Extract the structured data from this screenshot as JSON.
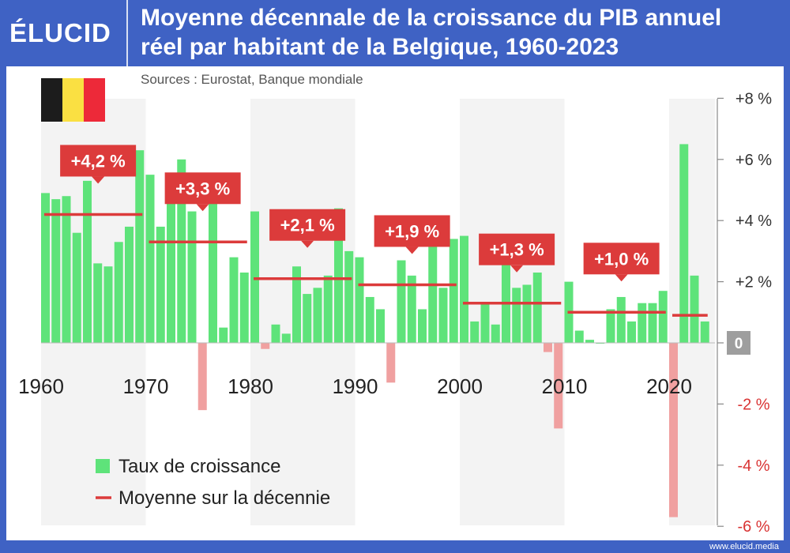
{
  "header": {
    "logo": "ÉLUCID",
    "title_line1": "Moyenne décennale de la croissance du PIB annuel",
    "title_line2": "réel par habitant de la Belgique, 1960-2023"
  },
  "source": "Sources : Eurostat, Banque mondiale",
  "footer": "www.elucid.media",
  "colors": {
    "positive_bar": "#5ee37a",
    "negative_bar": "#f0a0a0",
    "average_line": "#dc3b3b",
    "label_box": "#dc3b3b",
    "negative_tick": "#d93333",
    "zero_box": "#9e9e9e",
    "band": "#f3f3f3",
    "brand": "#3f62c4"
  },
  "chart_data": {
    "type": "bar",
    "title": "Moyenne décennale de la croissance du PIB annuel réel par habitant de la Belgique, 1960-2023",
    "x": [
      1960,
      1961,
      1962,
      1963,
      1964,
      1965,
      1966,
      1967,
      1968,
      1969,
      1970,
      1971,
      1972,
      1973,
      1974,
      1975,
      1976,
      1977,
      1978,
      1979,
      1980,
      1981,
      1982,
      1983,
      1984,
      1985,
      1986,
      1987,
      1988,
      1989,
      1990,
      1991,
      1992,
      1993,
      1994,
      1995,
      1996,
      1997,
      1998,
      1999,
      2000,
      2001,
      2002,
      2003,
      2004,
      2005,
      2006,
      2007,
      2008,
      2009,
      2010,
      2011,
      2012,
      2013,
      2014,
      2015,
      2016,
      2017,
      2018,
      2019,
      2020,
      2021,
      2022,
      2023
    ],
    "values": [
      4.9,
      4.7,
      4.8,
      3.6,
      5.3,
      2.6,
      2.5,
      3.3,
      3.8,
      6.3,
      5.5,
      3.8,
      4.8,
      6.0,
      4.3,
      -2.2,
      5.4,
      0.5,
      2.8,
      2.3,
      4.3,
      -0.2,
      0.6,
      0.3,
      2.5,
      1.6,
      1.8,
      2.2,
      4.4,
      3.0,
      2.8,
      1.5,
      1.1,
      -1.3,
      2.7,
      2.2,
      1.1,
      3.3,
      1.8,
      3.4,
      3.5,
      0.7,
      1.3,
      0.6,
      2.7,
      1.8,
      1.9,
      2.3,
      -0.3,
      -2.8,
      2.0,
      0.4,
      0.1,
      0.0,
      1.1,
      1.5,
      0.7,
      1.3,
      1.3,
      1.7,
      -5.7,
      6.5,
      2.2,
      0.7
    ],
    "decade_averages": [
      {
        "start": 1960,
        "end": 1969,
        "value": 4.2,
        "label": "+4,2 %"
      },
      {
        "start": 1970,
        "end": 1979,
        "value": 3.3,
        "label": "+3,3 %"
      },
      {
        "start": 1980,
        "end": 1989,
        "value": 2.1,
        "label": "+2,1 %"
      },
      {
        "start": 1990,
        "end": 1999,
        "value": 1.9,
        "label": "+1,9 %"
      },
      {
        "start": 2000,
        "end": 2009,
        "value": 1.3,
        "label": "+1,3 %"
      },
      {
        "start": 2010,
        "end": 2019,
        "value": 1.0,
        "label": "+1,0 %"
      },
      {
        "start": 2020,
        "end": 2023,
        "value": 0.9,
        "label": ""
      }
    ],
    "x_ticks": [
      "1960",
      "1970",
      "1980",
      "1990",
      "2000",
      "2010",
      "2020"
    ],
    "y_ticks": [
      {
        "value": 8,
        "label": "+8 %"
      },
      {
        "value": 6,
        "label": "+6 %"
      },
      {
        "value": 4,
        "label": "+4 %"
      },
      {
        "value": 2,
        "label": "+2 %"
      },
      {
        "value": 0,
        "label": "0"
      },
      {
        "value": -2,
        "label": "-2 %"
      },
      {
        "value": -4,
        "label": "-4 %"
      },
      {
        "value": -6,
        "label": "-6 %"
      }
    ],
    "ylim": [
      -6,
      8
    ],
    "legend": {
      "position": "bottom-left",
      "items": [
        {
          "name": "Taux de croissance",
          "kind": "bar"
        },
        {
          "name": "Moyenne sur la décennie",
          "kind": "line"
        }
      ]
    },
    "xlabel": "",
    "ylabel": ""
  }
}
